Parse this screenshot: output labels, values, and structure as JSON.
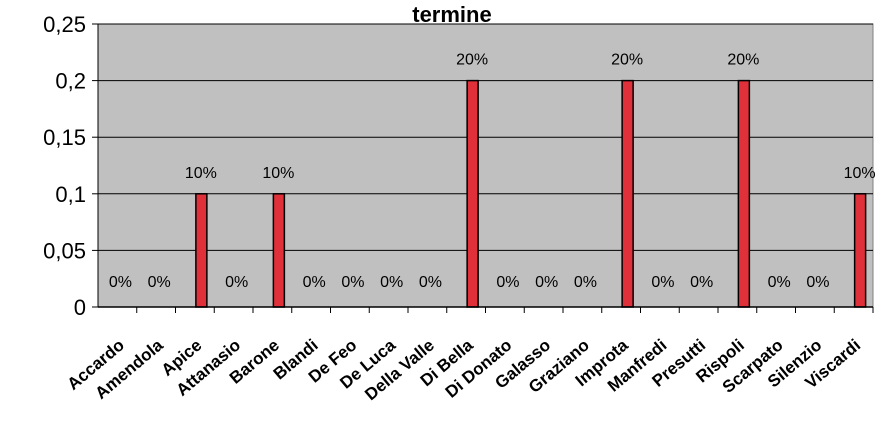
{
  "chart_data": {
    "type": "bar",
    "title": "termine",
    "xlabel": "",
    "ylabel": "",
    "ylim": [
      0,
      0.25
    ],
    "yticks": [
      {
        "value": 0,
        "label": "0"
      },
      {
        "value": 0.05,
        "label": "0,05"
      },
      {
        "value": 0.1,
        "label": "0,1"
      },
      {
        "value": 0.15,
        "label": "0,15"
      },
      {
        "value": 0.2,
        "label": "0,2"
      },
      {
        "value": 0.25,
        "label": "0,25"
      }
    ],
    "grid": true,
    "legend": "none",
    "categories": [
      "Accardo",
      "Amendola",
      "Apice",
      "Attanasio",
      "Barone",
      "Blandi",
      "De Feo",
      "De Luca",
      "Della Valle",
      "Di Bella",
      "Di Donato",
      "Galasso",
      "Graziano",
      "Improta",
      "Manfredi",
      "Presutti",
      "Rispoli",
      "Scarpato",
      "Silenzio",
      "Viscardi"
    ],
    "values": [
      0,
      0,
      0.1,
      0,
      0.1,
      0,
      0,
      0,
      0,
      0.2,
      0,
      0,
      0,
      0.2,
      0,
      0,
      0.2,
      0,
      0,
      0.1
    ],
    "data_labels": [
      "0%",
      "0%",
      "10%",
      "0%",
      "10%",
      "0%",
      "0%",
      "0%",
      "0%",
      "20%",
      "0%",
      "0%",
      "0%",
      "20%",
      "0%",
      "0%",
      "20%",
      "0%",
      "0%",
      "10%"
    ],
    "colors": {
      "bar": "#e0303a",
      "bar_stroke": "#000000",
      "plot_bg": "#c0c0c0",
      "grid": "#000000"
    }
  }
}
